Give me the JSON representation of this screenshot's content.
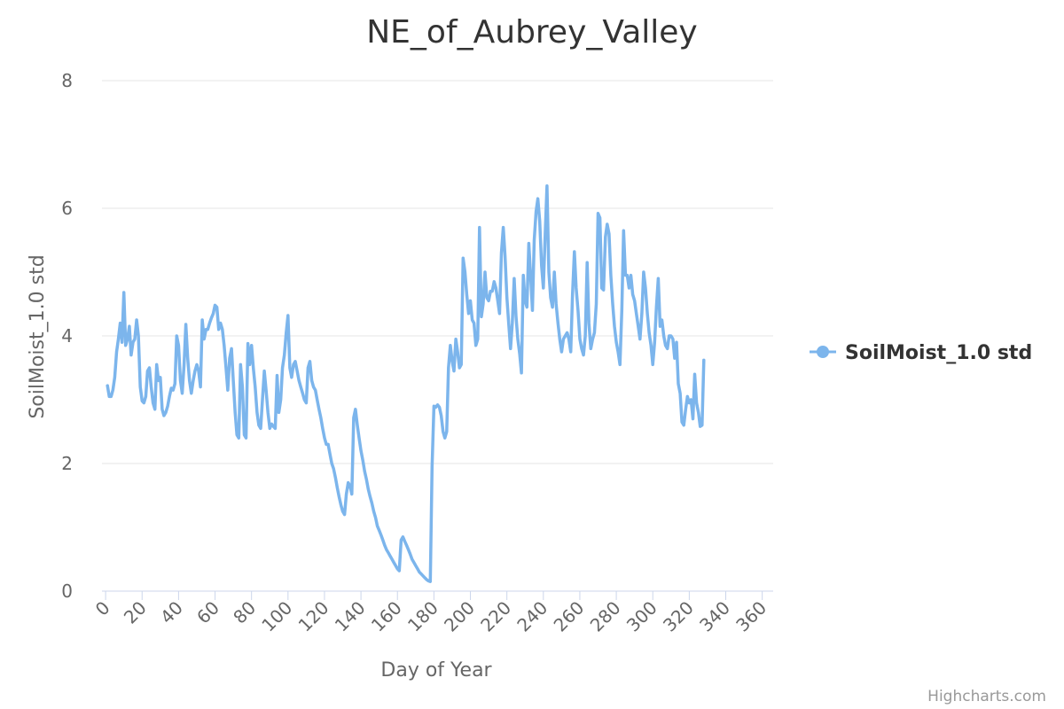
{
  "chart_data": {
    "type": "line",
    "title": "NE_of_Aubrey_Valley",
    "xlabel": "Day of Year",
    "ylabel": "SoilMoist_1.0 std",
    "xlim": [
      -2,
      366
    ],
    "ylim": [
      0,
      8
    ],
    "x_ticks": [
      0,
      20,
      40,
      60,
      80,
      100,
      120,
      140,
      160,
      180,
      200,
      220,
      240,
      260,
      280,
      300,
      320,
      340,
      360
    ],
    "y_ticks": [
      0,
      2,
      4,
      6,
      8
    ],
    "grid": true,
    "legend_position": "right",
    "series": [
      {
        "name": "SoilMoist_1.0 std",
        "color": "#7cb5ec",
        "points": [
          [
            1,
            3.22
          ],
          [
            2,
            3.05
          ],
          [
            3,
            3.05
          ],
          [
            4,
            3.15
          ],
          [
            5,
            3.35
          ],
          [
            6,
            3.75
          ],
          [
            7,
            3.95
          ],
          [
            8,
            4.2
          ],
          [
            9,
            3.9
          ],
          [
            10,
            4.68
          ],
          [
            11,
            3.85
          ],
          [
            12,
            3.95
          ],
          [
            13,
            4.15
          ],
          [
            14,
            3.7
          ],
          [
            15,
            3.9
          ],
          [
            16,
            3.95
          ],
          [
            17,
            4.25
          ],
          [
            18,
            4.0
          ],
          [
            19,
            3.2
          ],
          [
            20,
            2.98
          ],
          [
            21,
            2.95
          ],
          [
            22,
            3.05
          ],
          [
            23,
            3.45
          ],
          [
            24,
            3.5
          ],
          [
            25,
            3.2
          ],
          [
            26,
            2.95
          ],
          [
            27,
            2.85
          ],
          [
            28,
            3.55
          ],
          [
            29,
            3.3
          ],
          [
            30,
            3.35
          ],
          [
            31,
            2.85
          ],
          [
            32,
            2.75
          ],
          [
            33,
            2.8
          ],
          [
            34,
            2.9
          ],
          [
            35,
            3.05
          ],
          [
            36,
            3.18
          ],
          [
            37,
            3.15
          ],
          [
            38,
            3.25
          ],
          [
            39,
            4.0
          ],
          [
            40,
            3.85
          ],
          [
            41,
            3.3
          ],
          [
            42,
            3.1
          ],
          [
            43,
            3.55
          ],
          [
            44,
            4.18
          ],
          [
            45,
            3.65
          ],
          [
            46,
            3.3
          ],
          [
            47,
            3.1
          ],
          [
            48,
            3.3
          ],
          [
            49,
            3.45
          ],
          [
            50,
            3.55
          ],
          [
            51,
            3.45
          ],
          [
            52,
            3.2
          ],
          [
            53,
            4.25
          ],
          [
            54,
            3.95
          ],
          [
            55,
            4.1
          ],
          [
            56,
            4.1
          ],
          [
            57,
            4.2
          ],
          [
            58,
            4.28
          ],
          [
            59,
            4.35
          ],
          [
            60,
            4.48
          ],
          [
            61,
            4.45
          ],
          [
            62,
            4.1
          ],
          [
            63,
            4.2
          ],
          [
            64,
            4.1
          ],
          [
            65,
            3.85
          ],
          [
            66,
            3.5
          ],
          [
            67,
            3.15
          ],
          [
            68,
            3.65
          ],
          [
            69,
            3.8
          ],
          [
            70,
            3.3
          ],
          [
            71,
            2.8
          ],
          [
            72,
            2.45
          ],
          [
            73,
            2.4
          ],
          [
            74,
            3.55
          ],
          [
            75,
            3.2
          ],
          [
            76,
            2.45
          ],
          [
            77,
            2.4
          ],
          [
            78,
            3.88
          ],
          [
            79,
            3.55
          ],
          [
            80,
            3.85
          ],
          [
            81,
            3.5
          ],
          [
            82,
            3.2
          ],
          [
            83,
            2.8
          ],
          [
            84,
            2.6
          ],
          [
            85,
            2.55
          ],
          [
            86,
            3.0
          ],
          [
            87,
            3.45
          ],
          [
            88,
            3.15
          ],
          [
            89,
            2.8
          ],
          [
            90,
            2.55
          ],
          [
            91,
            2.62
          ],
          [
            92,
            2.58
          ],
          [
            93,
            2.55
          ],
          [
            94,
            3.38
          ],
          [
            95,
            2.8
          ],
          [
            96,
            3.0
          ],
          [
            97,
            3.5
          ],
          [
            98,
            3.7
          ],
          [
            99,
            4.05
          ],
          [
            100,
            4.32
          ],
          [
            101,
            3.5
          ],
          [
            102,
            3.35
          ],
          [
            103,
            3.55
          ],
          [
            104,
            3.6
          ],
          [
            105,
            3.45
          ],
          [
            106,
            3.3
          ],
          [
            107,
            3.2
          ],
          [
            108,
            3.1
          ],
          [
            109,
            3.0
          ],
          [
            110,
            2.95
          ],
          [
            111,
            3.5
          ],
          [
            112,
            3.6
          ],
          [
            113,
            3.3
          ],
          [
            114,
            3.2
          ],
          [
            115,
            3.15
          ],
          [
            116,
            3.0
          ],
          [
            117,
            2.85
          ],
          [
            118,
            2.72
          ],
          [
            119,
            2.55
          ],
          [
            120,
            2.4
          ],
          [
            121,
            2.3
          ],
          [
            122,
            2.3
          ],
          [
            123,
            2.15
          ],
          [
            124,
            2.0
          ],
          [
            125,
            1.92
          ],
          [
            126,
            1.78
          ],
          [
            127,
            1.62
          ],
          [
            128,
            1.48
          ],
          [
            129,
            1.35
          ],
          [
            130,
            1.25
          ],
          [
            131,
            1.2
          ],
          [
            132,
            1.52
          ],
          [
            133,
            1.7
          ],
          [
            134,
            1.65
          ],
          [
            135,
            1.52
          ],
          [
            136,
            2.72
          ],
          [
            137,
            2.85
          ],
          [
            138,
            2.6
          ],
          [
            139,
            2.4
          ],
          [
            140,
            2.2
          ],
          [
            141,
            2.05
          ],
          [
            142,
            1.88
          ],
          [
            143,
            1.75
          ],
          [
            144,
            1.6
          ],
          [
            145,
            1.48
          ],
          [
            146,
            1.38
          ],
          [
            147,
            1.25
          ],
          [
            148,
            1.15
          ],
          [
            149,
            1.02
          ],
          [
            150,
            0.95
          ],
          [
            151,
            0.88
          ],
          [
            152,
            0.8
          ],
          [
            153,
            0.72
          ],
          [
            154,
            0.65
          ],
          [
            155,
            0.6
          ],
          [
            156,
            0.55
          ],
          [
            157,
            0.5
          ],
          [
            158,
            0.45
          ],
          [
            159,
            0.4
          ],
          [
            160,
            0.35
          ],
          [
            161,
            0.32
          ],
          [
            162,
            0.8
          ],
          [
            163,
            0.85
          ],
          [
            164,
            0.78
          ],
          [
            165,
            0.72
          ],
          [
            166,
            0.65
          ],
          [
            167,
            0.58
          ],
          [
            168,
            0.5
          ],
          [
            169,
            0.45
          ],
          [
            170,
            0.4
          ],
          [
            171,
            0.35
          ],
          [
            172,
            0.3
          ],
          [
            173,
            0.27
          ],
          [
            174,
            0.24
          ],
          [
            175,
            0.21
          ],
          [
            176,
            0.18
          ],
          [
            177,
            0.16
          ],
          [
            178,
            0.15
          ],
          [
            179,
            1.95
          ],
          [
            180,
            2.9
          ],
          [
            181,
            2.88
          ],
          [
            182,
            2.92
          ],
          [
            183,
            2.88
          ],
          [
            184,
            2.75
          ],
          [
            185,
            2.5
          ],
          [
            186,
            2.4
          ],
          [
            187,
            2.5
          ],
          [
            188,
            3.5
          ],
          [
            189,
            3.85
          ],
          [
            190,
            3.6
          ],
          [
            191,
            3.45
          ],
          [
            192,
            3.95
          ],
          [
            193,
            3.75
          ],
          [
            194,
            3.5
          ],
          [
            195,
            3.55
          ],
          [
            196,
            5.22
          ],
          [
            197,
            5.0
          ],
          [
            198,
            4.65
          ],
          [
            199,
            4.35
          ],
          [
            200,
            4.55
          ],
          [
            201,
            4.25
          ],
          [
            202,
            4.2
          ],
          [
            203,
            3.85
          ],
          [
            204,
            3.95
          ],
          [
            205,
            5.7
          ],
          [
            206,
            4.3
          ],
          [
            207,
            4.5
          ],
          [
            208,
            5.0
          ],
          [
            209,
            4.6
          ],
          [
            210,
            4.55
          ],
          [
            211,
            4.7
          ],
          [
            212,
            4.7
          ],
          [
            213,
            4.85
          ],
          [
            214,
            4.75
          ],
          [
            215,
            4.55
          ],
          [
            216,
            4.35
          ],
          [
            217,
            5.3
          ],
          [
            218,
            5.7
          ],
          [
            219,
            5.25
          ],
          [
            220,
            4.6
          ],
          [
            221,
            4.2
          ],
          [
            222,
            3.8
          ],
          [
            223,
            4.2
          ],
          [
            224,
            4.9
          ],
          [
            225,
            4.3
          ],
          [
            226,
            3.95
          ],
          [
            227,
            3.72
          ],
          [
            228,
            3.42
          ],
          [
            229,
            4.95
          ],
          [
            230,
            4.55
          ],
          [
            231,
            4.45
          ],
          [
            232,
            5.45
          ],
          [
            233,
            4.95
          ],
          [
            234,
            4.4
          ],
          [
            235,
            5.5
          ],
          [
            236,
            5.95
          ],
          [
            237,
            6.15
          ],
          [
            238,
            5.8
          ],
          [
            239,
            5.1
          ],
          [
            240,
            4.75
          ],
          [
            241,
            5.6
          ],
          [
            242,
            6.35
          ],
          [
            243,
            5.0
          ],
          [
            244,
            4.6
          ],
          [
            245,
            4.45
          ],
          [
            246,
            5.0
          ],
          [
            247,
            4.5
          ],
          [
            248,
            4.2
          ],
          [
            249,
            3.95
          ],
          [
            250,
            3.75
          ],
          [
            251,
            3.95
          ],
          [
            252,
            4.0
          ],
          [
            253,
            4.05
          ],
          [
            254,
            3.95
          ],
          [
            255,
            3.75
          ],
          [
            256,
            4.65
          ],
          [
            257,
            5.32
          ],
          [
            258,
            4.75
          ],
          [
            259,
            4.4
          ],
          [
            260,
            3.95
          ],
          [
            261,
            3.8
          ],
          [
            262,
            3.7
          ],
          [
            263,
            4.0
          ],
          [
            264,
            5.15
          ],
          [
            265,
            4.2
          ],
          [
            266,
            3.8
          ],
          [
            267,
            3.95
          ],
          [
            268,
            4.05
          ],
          [
            269,
            4.5
          ],
          [
            270,
            5.92
          ],
          [
            271,
            5.85
          ],
          [
            272,
            4.75
          ],
          [
            273,
            4.72
          ],
          [
            274,
            5.55
          ],
          [
            275,
            5.75
          ],
          [
            276,
            5.6
          ],
          [
            277,
            4.95
          ],
          [
            278,
            4.5
          ],
          [
            279,
            4.15
          ],
          [
            280,
            3.9
          ],
          [
            281,
            3.75
          ],
          [
            282,
            3.55
          ],
          [
            283,
            4.4
          ],
          [
            284,
            5.65
          ],
          [
            285,
            4.95
          ],
          [
            286,
            4.95
          ],
          [
            287,
            4.75
          ],
          [
            288,
            4.95
          ],
          [
            289,
            4.65
          ],
          [
            290,
            4.55
          ],
          [
            291,
            4.35
          ],
          [
            292,
            4.15
          ],
          [
            293,
            3.95
          ],
          [
            294,
            4.35
          ],
          [
            295,
            5.0
          ],
          [
            296,
            4.75
          ],
          [
            297,
            4.35
          ],
          [
            298,
            4.05
          ],
          [
            299,
            3.85
          ],
          [
            300,
            3.55
          ],
          [
            301,
            3.9
          ],
          [
            302,
            4.45
          ],
          [
            303,
            4.9
          ],
          [
            304,
            4.15
          ],
          [
            305,
            4.25
          ],
          [
            306,
            4.0
          ],
          [
            307,
            3.85
          ],
          [
            308,
            3.8
          ],
          [
            309,
            4.0
          ],
          [
            310,
            4.0
          ],
          [
            311,
            3.95
          ],
          [
            312,
            3.65
          ],
          [
            313,
            3.9
          ],
          [
            314,
            3.25
          ],
          [
            315,
            3.1
          ],
          [
            316,
            2.65
          ],
          [
            317,
            2.6
          ],
          [
            318,
            2.85
          ],
          [
            319,
            3.05
          ],
          [
            320,
            2.95
          ],
          [
            321,
            3.0
          ],
          [
            322,
            2.7
          ],
          [
            323,
            3.4
          ],
          [
            324,
            2.95
          ],
          [
            325,
            2.8
          ],
          [
            326,
            2.58
          ],
          [
            327,
            2.6
          ],
          [
            328,
            3.62
          ]
        ]
      }
    ]
  },
  "legend": {
    "items": [
      {
        "label": "SoilMoist_1.0 std",
        "color": "#7cb5ec"
      }
    ]
  },
  "credits": "Highcharts.com"
}
